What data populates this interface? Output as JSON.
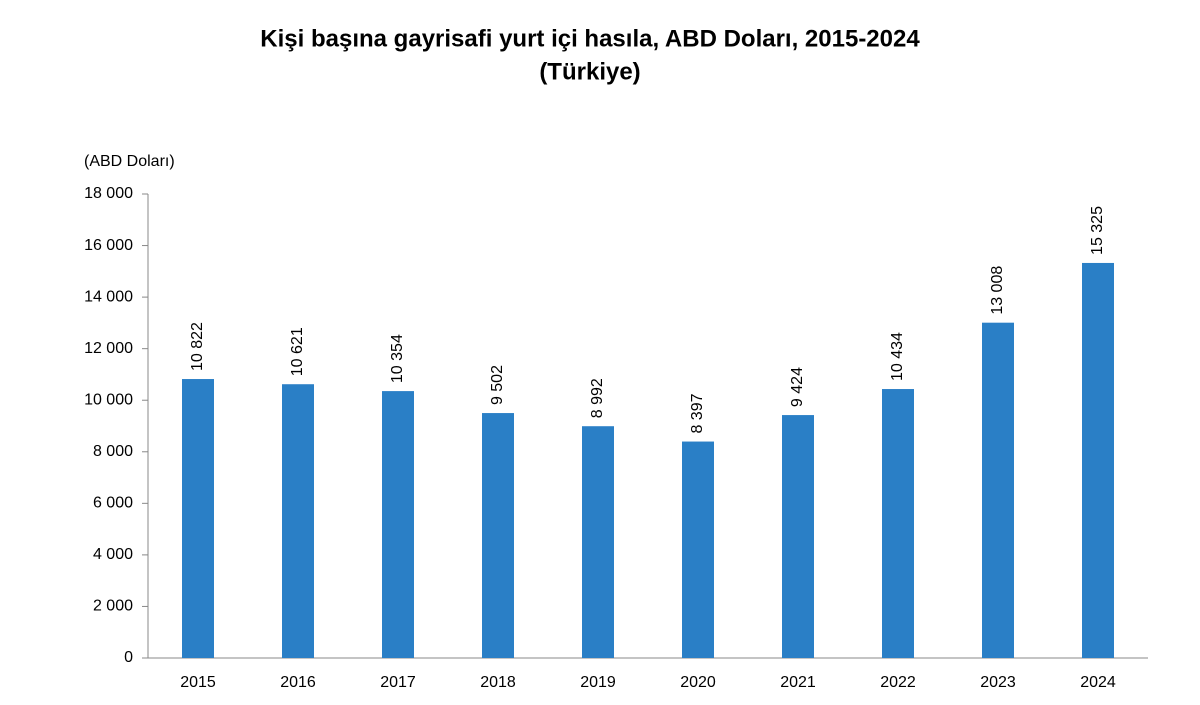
{
  "chart_data": {
    "type": "bar",
    "title": "Kişi başına gayrisafi yurt içi hasıla, ABD Doları, 2015-2024",
    "subtitle": "(Türkiye)",
    "y_label": "(ABD Doları)",
    "categories": [
      "2015",
      "2016",
      "2017",
      "2018",
      "2019",
      "2020",
      "2021",
      "2022",
      "2023",
      "2024"
    ],
    "values": [
      10822,
      10621,
      10354,
      9502,
      8992,
      8397,
      9424,
      10434,
      13008,
      15325
    ],
    "value_labels": [
      "10 822",
      "10 621",
      "10 354",
      "9 502",
      "8 992",
      "8 397",
      "9 424",
      "10 434",
      "13 008",
      "15 325"
    ],
    "color": "#2a7fc6",
    "ylim": [
      0,
      18000
    ],
    "yticks": [
      0,
      {
        "value": 2000,
        "label": "2 000"
      },
      {
        "value": 4000,
        "label": "4 000"
      },
      {
        "value": 6000,
        "label": "6 000"
      },
      {
        "value": 8000,
        "label": "8 000"
      },
      {
        "value": 10000,
        "label": "10 000"
      },
      {
        "value": 12000,
        "label": "12 000"
      },
      {
        "value": 14000,
        "label": "14 000"
      },
      {
        "value": 16000,
        "label": "16 000"
      },
      {
        "value": 18000,
        "label": "18 000"
      }
    ],
    "grid": false
  }
}
